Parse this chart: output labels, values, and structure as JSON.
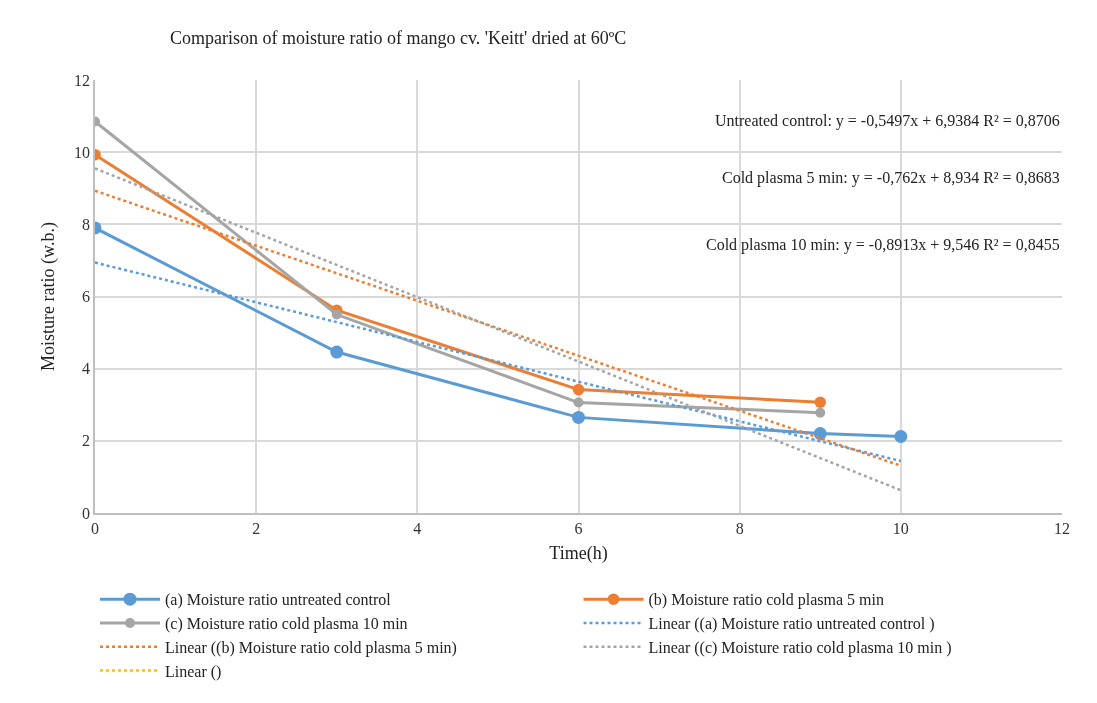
{
  "chart_data": {
    "type": "line",
    "title": "Comparison of moisture ratio of mango cv. 'Keitt' dried at 60ºC",
    "xlabel": "Time(h)",
    "ylabel": "Moisture ratio (w.b.)",
    "xlim": [
      0,
      12
    ],
    "xticks": [
      0,
      2,
      4,
      6,
      8,
      10,
      12
    ],
    "ylim": [
      0,
      12
    ],
    "yticks": [
      0,
      2,
      4,
      6,
      8,
      10,
      12
    ],
    "grid": true,
    "legend": "bottom",
    "marker": "circle",
    "line_style": "solid",
    "annotations": [
      "Untreated control: y = -0,5497x + 6,9384 R² = 0,8706",
      "Cold plasma 5 min: y = -0,762x + 8,934 R² = 0,8683",
      "Cold plasma 10 min: y = -0,8913x + 9,546 R² = 0,8455"
    ],
    "series": [
      {
        "name": "(a) Moisture ratio untreated control",
        "color": "#5b9bd5",
        "x": [
          0,
          3,
          6,
          9,
          10
        ],
        "values": [
          7.9,
          4.46,
          2.65,
          2.2,
          2.12
        ]
      },
      {
        "name": "(b) Moisture ratio cold plasma 5 min",
        "color": "#ed7d31",
        "x": [
          0,
          3,
          6,
          9
        ],
        "values": [
          9.93,
          5.62,
          3.42,
          3.07
        ]
      },
      {
        "name": "(c) Moisture ratio cold plasma 10 min",
        "color": "#a5a5a5",
        "x": [
          0,
          3,
          6,
          9
        ],
        "values": [
          10.85,
          5.5,
          3.06,
          2.78
        ]
      },
      {
        "name": "Linear ((a) Moisture ratio untreated control )",
        "color": "#5b9bd5",
        "x": [
          0,
          10
        ],
        "values": [
          6.94,
          1.44
        ],
        "marker": "none",
        "line_style": "dotted"
      },
      {
        "name": "Linear ((b) Moisture ratio cold plasma 5 min)",
        "color": "#ed7d31",
        "x": [
          0,
          10
        ],
        "values": [
          8.93,
          1.31
        ],
        "marker": "none",
        "line_style": "dotted"
      },
      {
        "name": "Linear ((c) Moisture ratio cold plasma 10 min )",
        "color": "#a5a5a5",
        "x": [
          0,
          10
        ],
        "values": [
          9.55,
          0.63
        ],
        "marker": "none",
        "line_style": "dotted"
      },
      {
        "name": "Linear ()",
        "color": "#ffc000",
        "marker": "none",
        "line_style": "dotted"
      }
    ]
  }
}
